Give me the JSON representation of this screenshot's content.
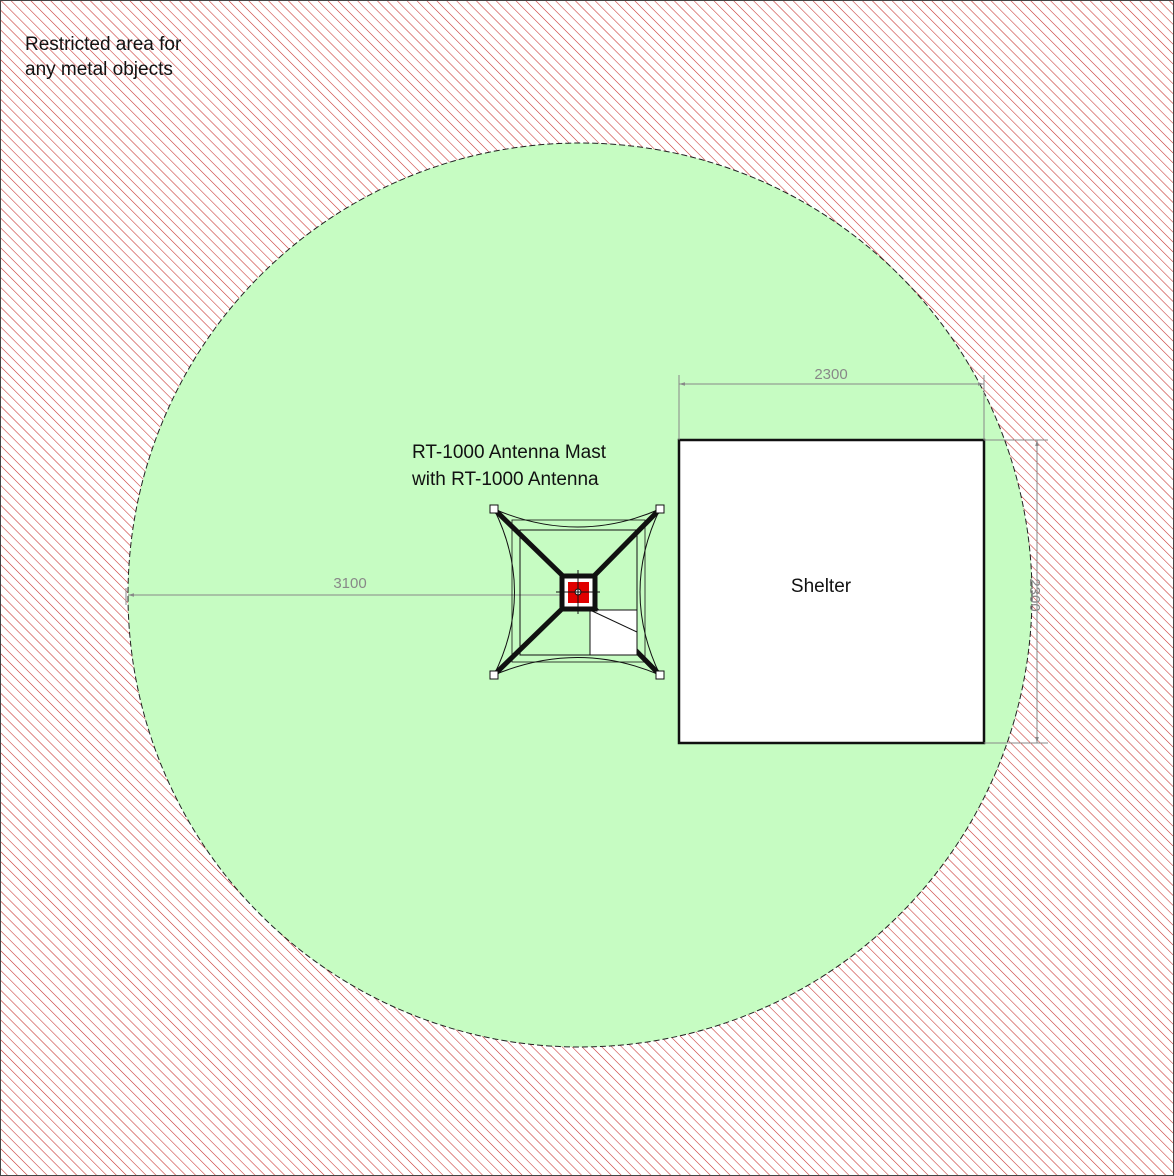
{
  "restricted_area": {
    "lines": [
      "Restricted area for",
      "any metal objects"
    ]
  },
  "antenna": {
    "lines": [
      "RT-1000 Antenna Mast",
      "with RT-1000 Antenna"
    ]
  },
  "shelter": {
    "label": "Shelter"
  },
  "dimensions": {
    "shelter_width": "2300",
    "shelter_depth": "2300",
    "distance_to_boundary": "3100"
  }
}
